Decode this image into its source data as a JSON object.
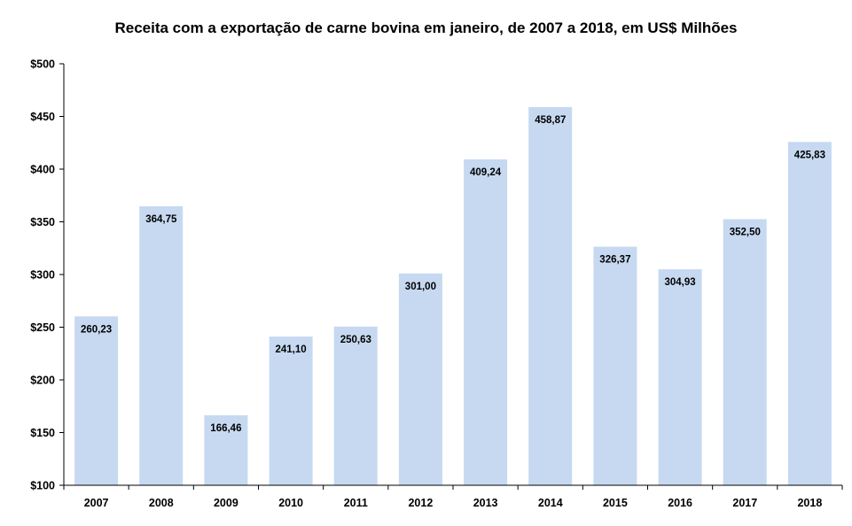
{
  "chart_data": {
    "type": "bar",
    "title": "Receita com a exportação de carne bovina em janeiro, de 2007 a 2018, em  US$ Milhões",
    "xlabel": "",
    "ylabel": "",
    "categories": [
      "2007",
      "2008",
      "2009",
      "2010",
      "2011",
      "2012",
      "2013",
      "2014",
      "2015",
      "2016",
      "2017",
      "2018"
    ],
    "values": [
      260.23,
      364.75,
      166.46,
      241.1,
      250.63,
      301.0,
      409.24,
      458.87,
      326.37,
      304.93,
      352.5,
      425.83
    ],
    "value_labels": [
      "260,23",
      "364,75",
      "166,46",
      "241,10",
      "250,63",
      "301,00",
      "409,24",
      "458,87",
      "326,37",
      "304,93",
      "352,50",
      "425,83"
    ],
    "ylim": [
      100,
      500
    ],
    "yticks": [
      100,
      150,
      200,
      250,
      300,
      350,
      400,
      450,
      500
    ],
    "ytick_labels": [
      "$100",
      "$150",
      "$200",
      "$250",
      "$300",
      "$350",
      "$400",
      "$450",
      "$500"
    ],
    "grid": false,
    "legend": "none",
    "bar_color": "#C6D9F1",
    "axis_color": "#000000"
  }
}
